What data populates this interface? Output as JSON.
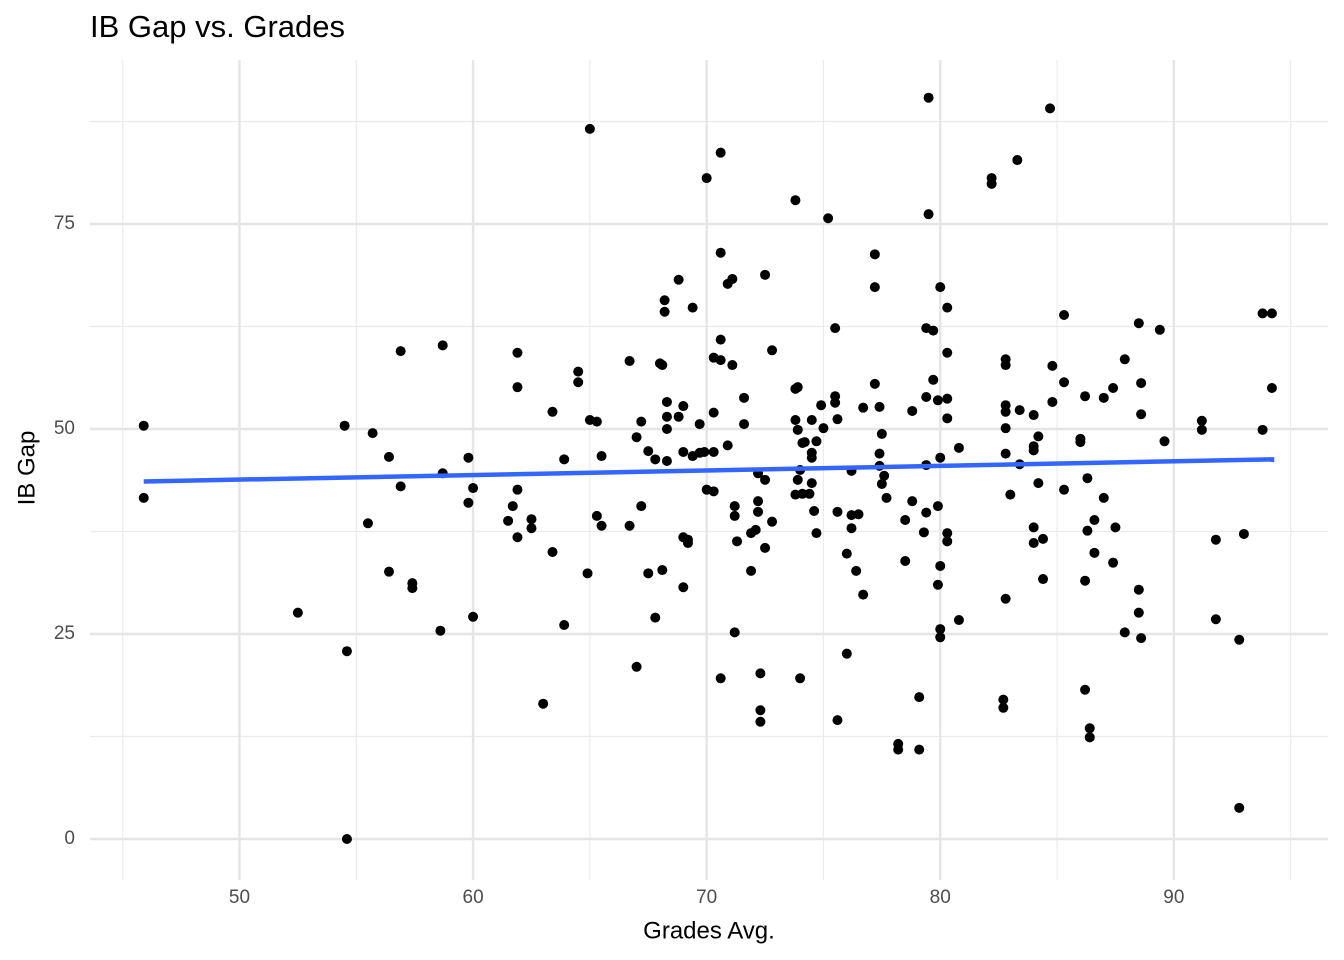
{
  "chart_data": {
    "type": "scatter",
    "title": "IB Gap vs. Grades",
    "x_label": "Grades Avg.",
    "y_label": "IB Gap",
    "color": "#000000",
    "grid": true,
    "xlim": [
      43.6,
      96.6
    ],
    "ylim": [
      -5,
      95
    ],
    "xticks": [
      50,
      60,
      70,
      80,
      90
    ],
    "yticks": [
      0,
      25,
      50,
      75
    ],
    "x": [
      45.9,
      45.9,
      52.5,
      54.5,
      54.6,
      54.6,
      55.5,
      55.7,
      56.4,
      56.4,
      56.9,
      56.9,
      57.4,
      57.4,
      58.7,
      58.7,
      58.6,
      59.8,
      59.8,
      60.0,
      60.0,
      61.5,
      61.7,
      61.9,
      61.9,
      61.9,
      61.9,
      62.5,
      62.5,
      63.0,
      63.4,
      63.4,
      63.9,
      63.9,
      64.5,
      64.5,
      64.9,
      65.0,
      65.0,
      65.3,
      65.3,
      65.5,
      65.5,
      66.7,
      66.7,
      67.0,
      67.0,
      67.2,
      67.2,
      67.5,
      67.5,
      67.8,
      67.8,
      68.0,
      68.1,
      68.1,
      68.2,
      68.2,
      68.3,
      68.3,
      68.3,
      68.3,
      68.8,
      68.8,
      69.0,
      69.0,
      69.0,
      69.0,
      69.2,
      69.2,
      69.4,
      69.4,
      69.7,
      69.7,
      69.9,
      70.0,
      70.0,
      70.3,
      70.3,
      70.3,
      70.3,
      70.6,
      70.6,
      70.6,
      70.6,
      70.6,
      70.9,
      70.9,
      71.1,
      71.1,
      71.2,
      71.2,
      71.2,
      71.3,
      71.6,
      71.6,
      71.9,
      71.9,
      72.1,
      72.2,
      72.2,
      72.2,
      72.3,
      72.3,
      72.3,
      72.5,
      72.5,
      72.5,
      72.8,
      72.8,
      73.8,
      73.8,
      73.8,
      73.8,
      73.9,
      73.9,
      73.9,
      74.0,
      74.0,
      74.1,
      74.1,
      74.2,
      74.4,
      74.5,
      74.5,
      74.5,
      74.5,
      74.6,
      74.7,
      74.7,
      74.9,
      75.0,
      75.2,
      75.5,
      75.5,
      75.5,
      75.6,
      75.6,
      75.6,
      76.0,
      76.0,
      76.2,
      76.2,
      76.2,
      76.4,
      76.5,
      76.7,
      76.7,
      77.2,
      77.2,
      77.2,
      77.4,
      77.4,
      77.4,
      77.5,
      77.5,
      77.6,
      77.7,
      78.2,
      78.2,
      78.5,
      78.5,
      78.8,
      78.8,
      79.1,
      79.1,
      79.3,
      79.4,
      79.4,
      79.4,
      79.4,
      79.5,
      79.5,
      79.7,
      79.7,
      79.9,
      79.9,
      79.9,
      80.0,
      80.0,
      80.0,
      80.0,
      80.0,
      80.3,
      80.3,
      80.3,
      80.3,
      80.3,
      80.3,
      80.8,
      80.8,
      82.2,
      82.2,
      82.8,
      82.8,
      82.8,
      82.8,
      82.8,
      82.8,
      82.8,
      82.7,
      82.7,
      83.0,
      83.3,
      83.4,
      83.4,
      84.0,
      84.0,
      84.0,
      84.0,
      84.0,
      84.2,
      84.2,
      84.4,
      84.4,
      84.7,
      84.8,
      84.8,
      85.3,
      85.3,
      85.3,
      86.0,
      86.0,
      86.2,
      86.2,
      86.2,
      86.3,
      86.3,
      86.4,
      86.4,
      86.6,
      86.6,
      87.0,
      87.0,
      87.4,
      87.4,
      87.5,
      87.9,
      87.9,
      88.5,
      88.6,
      88.6,
      88.5,
      88.5,
      88.6,
      89.4,
      89.6,
      91.2,
      91.2,
      91.8,
      91.8,
      92.8,
      92.8,
      93.0,
      93.8,
      93.8,
      94.2,
      94.2
    ],
    "y": [
      50.4,
      41.6,
      27.6,
      50.4,
      22.9,
      0,
      38.5,
      49.5,
      46.6,
      32.6,
      59.5,
      43.0,
      31.2,
      30.6,
      60.2,
      44.6,
      25.4,
      46.5,
      41.0,
      42.8,
      27.1,
      38.8,
      40.6,
      59.3,
      55.1,
      42.6,
      36.8,
      39.0,
      37.9,
      16.5,
      52.1,
      35.0,
      46.3,
      26.1,
      57.0,
      55.7,
      32.4,
      51.1,
      86.6,
      50.9,
      39.4,
      46.7,
      38.2,
      58.3,
      38.2,
      49.0,
      21.0,
      50.9,
      40.6,
      47.3,
      32.4,
      46.3,
      27.0,
      58.0,
      57.8,
      32.8,
      65.7,
      64.3,
      53.3,
      51.5,
      50.0,
      46.1,
      68.2,
      51.5,
      52.8,
      47.2,
      36.8,
      30.7,
      36.5,
      36.1,
      64.8,
      46.7,
      50.6,
      47.1,
      47.2,
      80.6,
      42.6,
      58.7,
      52.0,
      47.2,
      42.4,
      83.7,
      71.5,
      60.9,
      58.4,
      19.6,
      67.7,
      48.0,
      68.3,
      57.8,
      40.6,
      39.4,
      25.2,
      36.3,
      50.6,
      53.8,
      37.3,
      32.7,
      37.7,
      44.6,
      41.2,
      39.9,
      20.2,
      15.7,
      14.3,
      43.8,
      35.5,
      68.8,
      59.6,
      38.7,
      77.9,
      54.9,
      51.1,
      42.0,
      43.8,
      55.1,
      49.9,
      45.0,
      19.6,
      48.3,
      42.1,
      48.4,
      42.1,
      51.1,
      47.1,
      46.5,
      43.4,
      40.0,
      37.3,
      48.5,
      52.9,
      50.1,
      75.7,
      62.3,
      54.0,
      53.2,
      51.2,
      39.9,
      14.5,
      34.8,
      22.6,
      44.9,
      39.5,
      37.9,
      32.7,
      39.6,
      52.6,
      29.8,
      71.3,
      67.3,
      55.5,
      52.7,
      47.0,
      45.5,
      49.4,
      43.3,
      44.3,
      41.6,
      11.6,
      10.9,
      38.9,
      33.9,
      52.2,
      41.2,
      17.3,
      10.9,
      37.4,
      62.3,
      53.9,
      45.6,
      39.8,
      90.4,
      76.2,
      62.0,
      56.0,
      53.5,
      40.6,
      31.0,
      67.3,
      46.5,
      33.3,
      25.6,
      24.6,
      64.8,
      59.3,
      53.7,
      51.3,
      37.3,
      36.3,
      47.7,
      26.7,
      80.6,
      79.9,
      58.5,
      57.8,
      52.9,
      52.1,
      50.1,
      47.0,
      29.3,
      17.0,
      16.0,
      42.0,
      82.8,
      52.3,
      45.7,
      51.7,
      47.9,
      47.4,
      38.0,
      36.1,
      49.1,
      43.4,
      36.6,
      31.7,
      89.1,
      57.7,
      53.3,
      63.9,
      55.7,
      42.6,
      48.8,
      48.4,
      54.0,
      31.5,
      18.2,
      37.6,
      44.0,
      13.5,
      12.4,
      38.9,
      34.9,
      53.8,
      41.6,
      55.0,
      33.7,
      38.0,
      58.5,
      25.2,
      62.9,
      55.6,
      51.8,
      30.4,
      27.6,
      24.5,
      62.1,
      48.5,
      51.0,
      49.9,
      36.5,
      26.8,
      24.3,
      3.8,
      37.2,
      64.1,
      49.9,
      64.1,
      55.0
    ],
    "trend": {
      "color": "#3366FF",
      "x": [
        45.9,
        94.3
      ],
      "y": [
        43.6,
        46.3
      ]
    }
  }
}
